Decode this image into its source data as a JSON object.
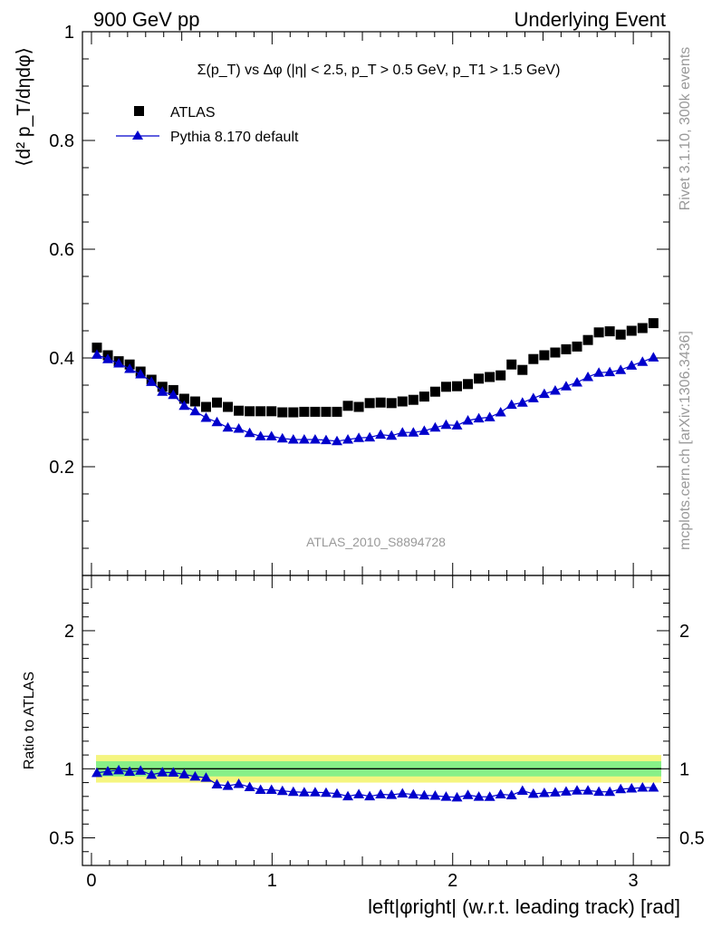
{
  "chart_data": {
    "type": "scatter",
    "header": {
      "left": "900 GeV pp",
      "right": "Underlying Event"
    },
    "title": "Σ(p_T) vs Δφ (|η| < 2.5, p_T > 0.5 GeV, p_T1 > 1.5 GeV)",
    "ylabel": "⟨d² p_T/dηdφ⟩",
    "xlabel": "left|φright| (w.r.t. leading track) [rad]",
    "ratio_ylabel": "Ratio to ATLAS",
    "analysis_tag": "ATLAS_2010_S8894728",
    "side_text_top": "Rivet 3.1.10,  300k events",
    "side_text_bottom": "mcplots.cern.ch [arXiv:1306.3436]",
    "xlim": [
      -0.05,
      3.2
    ],
    "ylim": [
      0,
      1
    ],
    "ratio_ylim": [
      0.3,
      2.4
    ],
    "x_ticks": [
      0,
      1,
      2,
      3
    ],
    "y_ticks": [
      0.2,
      0.4,
      0.6,
      0.8,
      1
    ],
    "y_tick_labels": [
      "0.2",
      "0.4",
      "0.6",
      "0.8",
      "1"
    ],
    "ratio_ticks": [
      0.5,
      1,
      2
    ],
    "ratio_tick_labels": [
      "0.5",
      "1",
      "2"
    ],
    "legend_placement": "top-left",
    "colors": {
      "atlas": "#000000",
      "pythia": "#0000cc",
      "band_inner": "#88f088",
      "band_outer": "#f5f580"
    },
    "series": [
      {
        "name": "ATLAS",
        "marker": "square",
        "values": [
          0.419,
          0.405,
          0.394,
          0.388,
          0.375,
          0.36,
          0.347,
          0.341,
          0.325,
          0.32,
          0.31,
          0.318,
          0.31,
          0.303,
          0.302,
          0.302,
          0.302,
          0.3,
          0.3,
          0.301,
          0.301,
          0.301,
          0.301,
          0.312,
          0.31,
          0.317,
          0.318,
          0.317,
          0.32,
          0.323,
          0.329,
          0.338,
          0.347,
          0.348,
          0.352,
          0.362,
          0.365,
          0.368,
          0.388,
          0.378,
          0.398,
          0.405,
          0.41,
          0.416,
          0.421,
          0.433,
          0.447,
          0.449,
          0.443,
          0.45,
          0.455,
          0.464
        ]
      },
      {
        "name": "Pythia 8.170 default",
        "marker": "triangle",
        "values": [
          0.406,
          0.398,
          0.39,
          0.38,
          0.37,
          0.356,
          0.338,
          0.332,
          0.312,
          0.302,
          0.29,
          0.282,
          0.272,
          0.27,
          0.262,
          0.256,
          0.256,
          0.252,
          0.25,
          0.25,
          0.25,
          0.249,
          0.247,
          0.25,
          0.253,
          0.254,
          0.259,
          0.257,
          0.263,
          0.263,
          0.266,
          0.272,
          0.277,
          0.276,
          0.285,
          0.289,
          0.291,
          0.3,
          0.314,
          0.318,
          0.326,
          0.334,
          0.34,
          0.348,
          0.355,
          0.365,
          0.373,
          0.374,
          0.378,
          0.386,
          0.393,
          0.401
        ]
      }
    ],
    "ratio_values": [
      0.97,
      0.982,
      0.99,
      0.979,
      0.987,
      0.957,
      0.974,
      0.973,
      0.96,
      0.944,
      0.936,
      0.887,
      0.877,
      0.891,
      0.868,
      0.848,
      0.848,
      0.84,
      0.833,
      0.83,
      0.83,
      0.827,
      0.82,
      0.801,
      0.816,
      0.801,
      0.815,
      0.811,
      0.822,
      0.814,
      0.808,
      0.805,
      0.798,
      0.793,
      0.81,
      0.798,
      0.797,
      0.815,
      0.809,
      0.841,
      0.819,
      0.825,
      0.829,
      0.836,
      0.843,
      0.843,
      0.834,
      0.833,
      0.853,
      0.858,
      0.864,
      0.864
    ]
  }
}
